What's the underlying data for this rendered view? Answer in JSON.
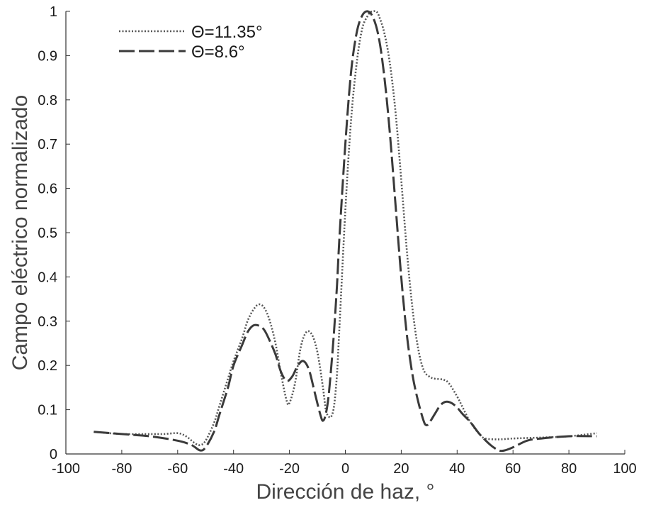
{
  "chart_data": {
    "type": "line",
    "title": "",
    "xlabel": "Dirección de haz, °",
    "ylabel": "Campo eléctrico normalizado",
    "xlim": [
      -100,
      100
    ],
    "ylim": [
      0,
      1
    ],
    "xticks": [
      -100,
      -80,
      -60,
      -40,
      -20,
      0,
      20,
      40,
      60,
      80,
      100
    ],
    "yticks": [
      0,
      0.1,
      0.2,
      0.3,
      0.4,
      0.5,
      0.6,
      0.7,
      0.8,
      0.9,
      1
    ],
    "xtick_labels": [
      "-100",
      "-80",
      "-60",
      "-40",
      "-20",
      "0",
      "20",
      "40",
      "60",
      "80",
      "100"
    ],
    "ytick_labels": [
      "0",
      "0.1",
      "0.2",
      "0.3",
      "0.4",
      "0.5",
      "0.6",
      "0.7",
      "0.8",
      "0.9",
      "1"
    ],
    "grid": false,
    "legend_position": "top-left",
    "series": [
      {
        "name": "Θ=11.35°",
        "style": "dotted",
        "color": "#555555",
        "x": [
          -90,
          -80,
          -70,
          -65,
          -60,
          -57,
          -54,
          -52,
          -50,
          -47,
          -45,
          -42,
          -40,
          -37,
          -35,
          -33,
          -31,
          -29,
          -27,
          -25,
          -23,
          -21,
          -20,
          -18,
          -16,
          -14,
          -12,
          -10,
          -8,
          -7,
          -6,
          -5,
          -4,
          -3,
          -2,
          0,
          2,
          4,
          6,
          8,
          9,
          10,
          11,
          12,
          14,
          16,
          18,
          20,
          22,
          24,
          26,
          28,
          30,
          32,
          35,
          37,
          40,
          42,
          44,
          46,
          48,
          50,
          55,
          60,
          70,
          80,
          90
        ],
        "y": [
          0.05,
          0.045,
          0.045,
          0.045,
          0.047,
          0.04,
          0.025,
          0.02,
          0.03,
          0.07,
          0.11,
          0.17,
          0.21,
          0.26,
          0.3,
          0.325,
          0.338,
          0.33,
          0.3,
          0.25,
          0.18,
          0.12,
          0.115,
          0.16,
          0.24,
          0.275,
          0.27,
          0.23,
          0.15,
          0.1,
          0.085,
          0.085,
          0.11,
          0.18,
          0.3,
          0.55,
          0.75,
          0.88,
          0.96,
          0.99,
          0.998,
          1.0,
          1.0,
          0.99,
          0.95,
          0.88,
          0.77,
          0.62,
          0.46,
          0.33,
          0.24,
          0.19,
          0.175,
          0.17,
          0.168,
          0.16,
          0.13,
          0.105,
          0.08,
          0.06,
          0.045,
          0.035,
          0.033,
          0.035,
          0.037,
          0.04,
          0.047
        ]
      },
      {
        "name": "Θ=8.6°",
        "style": "dashed",
        "color": "#3a3a3a",
        "x": [
          -90,
          -80,
          -70,
          -60,
          -55,
          -52,
          -50,
          -47,
          -45,
          -42,
          -40,
          -37,
          -35,
          -33,
          -31,
          -29,
          -27,
          -25,
          -23,
          -21,
          -19,
          -17,
          -15,
          -13,
          -11,
          -9,
          -8,
          -7,
          -6,
          -5,
          -4,
          -3,
          -2,
          0,
          2,
          4,
          6,
          8,
          10,
          12,
          14,
          16,
          18,
          20,
          22,
          24,
          26,
          28,
          29,
          30,
          32,
          34,
          36,
          38,
          40,
          42,
          45,
          48,
          52,
          55,
          57,
          60,
          65,
          70,
          80,
          90
        ],
        "y": [
          0.05,
          0.045,
          0.04,
          0.03,
          0.02,
          0.008,
          0.015,
          0.05,
          0.09,
          0.15,
          0.2,
          0.245,
          0.275,
          0.29,
          0.29,
          0.28,
          0.255,
          0.225,
          0.185,
          0.165,
          0.175,
          0.2,
          0.21,
          0.19,
          0.14,
          0.09,
          0.075,
          0.09,
          0.13,
          0.2,
          0.28,
          0.38,
          0.5,
          0.7,
          0.86,
          0.95,
          0.99,
          1.0,
          0.985,
          0.94,
          0.85,
          0.72,
          0.56,
          0.4,
          0.27,
          0.18,
          0.12,
          0.075,
          0.065,
          0.07,
          0.09,
          0.11,
          0.118,
          0.115,
          0.105,
          0.09,
          0.07,
          0.045,
          0.02,
          0.008,
          0.008,
          0.015,
          0.03,
          0.035,
          0.04,
          0.04
        ]
      }
    ]
  }
}
